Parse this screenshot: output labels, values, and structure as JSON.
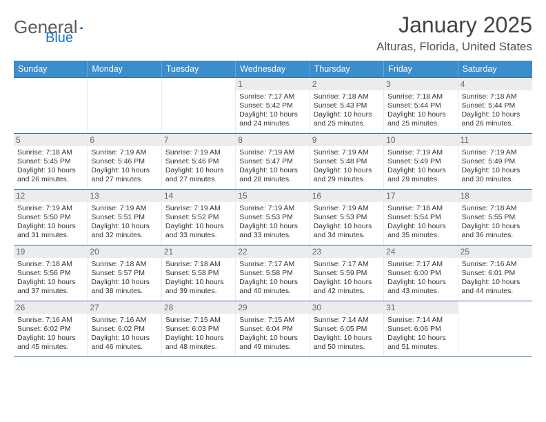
{
  "logo": {
    "text1": "General",
    "text2": "Blue"
  },
  "title": "January 2025",
  "location": "Alturas, Florida, United States",
  "colors": {
    "header_bg": "#3b8dcc",
    "header_text": "#ffffff",
    "rule": "#3b6fa0",
    "day_num_bg": "#ececec",
    "day_num_text": "#666666",
    "accent": "#1976c1"
  },
  "daysOfWeek": [
    "Sunday",
    "Monday",
    "Tuesday",
    "Wednesday",
    "Thursday",
    "Friday",
    "Saturday"
  ],
  "weeks": [
    [
      {
        "n": "",
        "empty": true
      },
      {
        "n": "",
        "empty": true
      },
      {
        "n": "",
        "empty": true
      },
      {
        "n": "1",
        "sunrise": "7:17 AM",
        "sunset": "5:42 PM",
        "daylight": "10 hours and 24 minutes."
      },
      {
        "n": "2",
        "sunrise": "7:18 AM",
        "sunset": "5:43 PM",
        "daylight": "10 hours and 25 minutes."
      },
      {
        "n": "3",
        "sunrise": "7:18 AM",
        "sunset": "5:44 PM",
        "daylight": "10 hours and 25 minutes."
      },
      {
        "n": "4",
        "sunrise": "7:18 AM",
        "sunset": "5:44 PM",
        "daylight": "10 hours and 26 minutes."
      }
    ],
    [
      {
        "n": "5",
        "sunrise": "7:18 AM",
        "sunset": "5:45 PM",
        "daylight": "10 hours and 26 minutes."
      },
      {
        "n": "6",
        "sunrise": "7:19 AM",
        "sunset": "5:46 PM",
        "daylight": "10 hours and 27 minutes."
      },
      {
        "n": "7",
        "sunrise": "7:19 AM",
        "sunset": "5:46 PM",
        "daylight": "10 hours and 27 minutes."
      },
      {
        "n": "8",
        "sunrise": "7:19 AM",
        "sunset": "5:47 PM",
        "daylight": "10 hours and 28 minutes."
      },
      {
        "n": "9",
        "sunrise": "7:19 AM",
        "sunset": "5:48 PM",
        "daylight": "10 hours and 29 minutes."
      },
      {
        "n": "10",
        "sunrise": "7:19 AM",
        "sunset": "5:49 PM",
        "daylight": "10 hours and 29 minutes."
      },
      {
        "n": "11",
        "sunrise": "7:19 AM",
        "sunset": "5:49 PM",
        "daylight": "10 hours and 30 minutes."
      }
    ],
    [
      {
        "n": "12",
        "sunrise": "7:19 AM",
        "sunset": "5:50 PM",
        "daylight": "10 hours and 31 minutes."
      },
      {
        "n": "13",
        "sunrise": "7:19 AM",
        "sunset": "5:51 PM",
        "daylight": "10 hours and 32 minutes."
      },
      {
        "n": "14",
        "sunrise": "7:19 AM",
        "sunset": "5:52 PM",
        "daylight": "10 hours and 33 minutes."
      },
      {
        "n": "15",
        "sunrise": "7:19 AM",
        "sunset": "5:53 PM",
        "daylight": "10 hours and 33 minutes."
      },
      {
        "n": "16",
        "sunrise": "7:19 AM",
        "sunset": "5:53 PM",
        "daylight": "10 hours and 34 minutes."
      },
      {
        "n": "17",
        "sunrise": "7:18 AM",
        "sunset": "5:54 PM",
        "daylight": "10 hours and 35 minutes."
      },
      {
        "n": "18",
        "sunrise": "7:18 AM",
        "sunset": "5:55 PM",
        "daylight": "10 hours and 36 minutes."
      }
    ],
    [
      {
        "n": "19",
        "sunrise": "7:18 AM",
        "sunset": "5:56 PM",
        "daylight": "10 hours and 37 minutes."
      },
      {
        "n": "20",
        "sunrise": "7:18 AM",
        "sunset": "5:57 PM",
        "daylight": "10 hours and 38 minutes."
      },
      {
        "n": "21",
        "sunrise": "7:18 AM",
        "sunset": "5:58 PM",
        "daylight": "10 hours and 39 minutes."
      },
      {
        "n": "22",
        "sunrise": "7:17 AM",
        "sunset": "5:58 PM",
        "daylight": "10 hours and 40 minutes."
      },
      {
        "n": "23",
        "sunrise": "7:17 AM",
        "sunset": "5:59 PM",
        "daylight": "10 hours and 42 minutes."
      },
      {
        "n": "24",
        "sunrise": "7:17 AM",
        "sunset": "6:00 PM",
        "daylight": "10 hours and 43 minutes."
      },
      {
        "n": "25",
        "sunrise": "7:16 AM",
        "sunset": "6:01 PM",
        "daylight": "10 hours and 44 minutes."
      }
    ],
    [
      {
        "n": "26",
        "sunrise": "7:16 AM",
        "sunset": "6:02 PM",
        "daylight": "10 hours and 45 minutes."
      },
      {
        "n": "27",
        "sunrise": "7:16 AM",
        "sunset": "6:02 PM",
        "daylight": "10 hours and 46 minutes."
      },
      {
        "n": "28",
        "sunrise": "7:15 AM",
        "sunset": "6:03 PM",
        "daylight": "10 hours and 48 minutes."
      },
      {
        "n": "29",
        "sunrise": "7:15 AM",
        "sunset": "6:04 PM",
        "daylight": "10 hours and 49 minutes."
      },
      {
        "n": "30",
        "sunrise": "7:14 AM",
        "sunset": "6:05 PM",
        "daylight": "10 hours and 50 minutes."
      },
      {
        "n": "31",
        "sunrise": "7:14 AM",
        "sunset": "6:06 PM",
        "daylight": "10 hours and 51 minutes."
      },
      {
        "n": "",
        "empty": true
      }
    ]
  ],
  "labels": {
    "sunrise": "Sunrise:",
    "sunset": "Sunset:",
    "daylight": "Daylight:"
  }
}
